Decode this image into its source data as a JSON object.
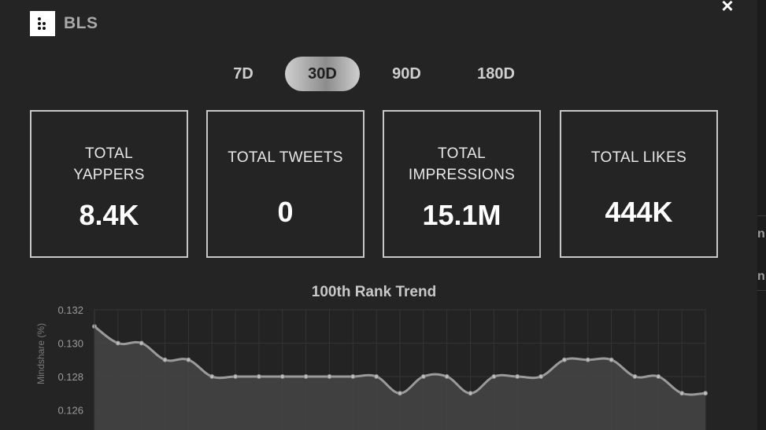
{
  "header": {
    "title": "BLS",
    "close_label": "×"
  },
  "tabs": [
    {
      "label": "7D",
      "active": false
    },
    {
      "label": "30D",
      "active": true
    },
    {
      "label": "90D",
      "active": false
    },
    {
      "label": "180D",
      "active": false
    }
  ],
  "stats": [
    {
      "label_lines": [
        "TOTAL",
        "YAPPERS"
      ],
      "value": "8.4K"
    },
    {
      "label_lines": [
        "TOTAL TWEETS"
      ],
      "value": "0"
    },
    {
      "label_lines": [
        "TOTAL",
        "IMPRESSIONS"
      ],
      "value": "15.1M"
    },
    {
      "label_lines": [
        "TOTAL LIKES"
      ],
      "value": "444K"
    }
  ],
  "chart_data": {
    "type": "area",
    "title": "100th Rank Trend",
    "ylabel": "Mindshare (%)",
    "xlabel": "",
    "ylim": [
      0.1255,
      0.1325
    ],
    "yticks": [
      "0.132",
      "0.130",
      "0.128",
      "0.126"
    ],
    "grid": true,
    "series": [
      {
        "values": [
          0.131,
          0.13,
          0.13,
          0.129,
          0.129,
          0.128,
          0.128,
          0.128,
          0.128,
          0.128,
          0.128,
          0.128,
          0.128,
          0.127,
          0.128,
          0.128,
          0.127,
          0.128,
          0.128,
          0.128,
          0.129,
          0.129,
          0.129,
          0.128,
          0.128,
          0.127,
          0.127
        ]
      }
    ],
    "colors": {
      "line": "#9a9a9a",
      "fill": "#444444",
      "grid": "#343434",
      "axis": "#9a9a9a"
    }
  }
}
